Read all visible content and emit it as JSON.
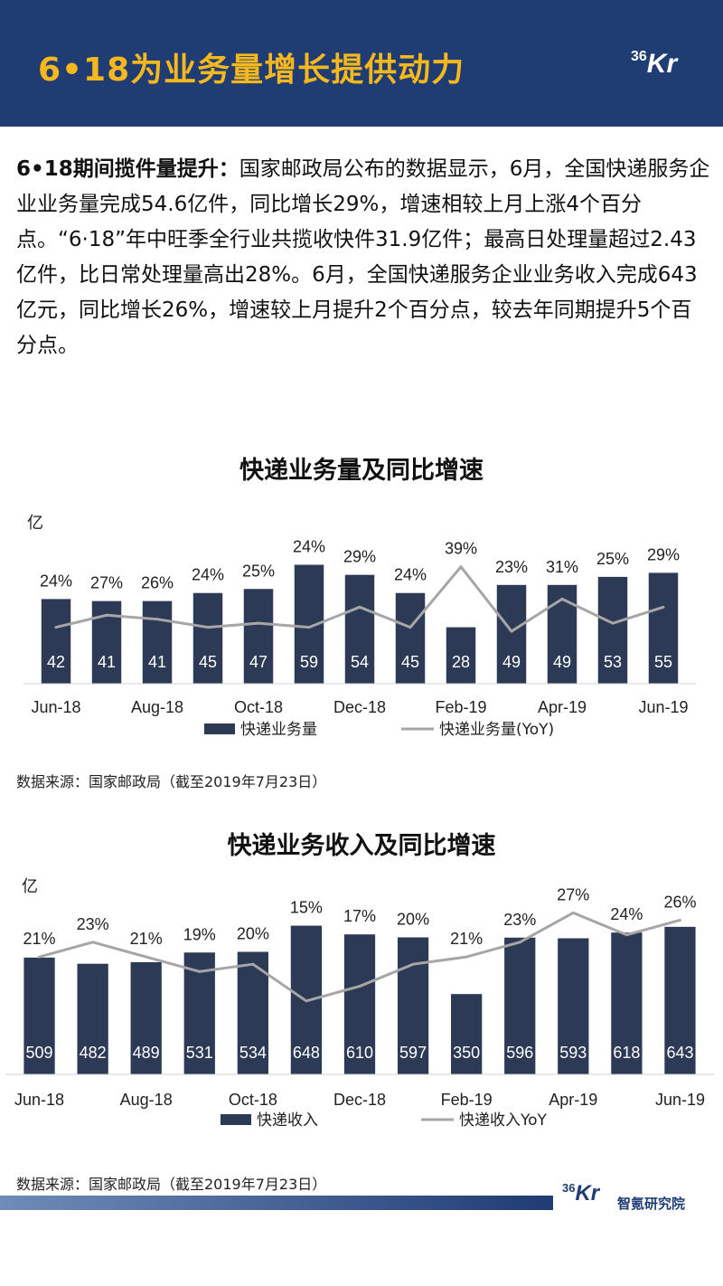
{
  "header": {
    "title": "6•18为业务量增长提供动力",
    "logo_num": "36",
    "logo_kr": "Kr"
  },
  "intro": {
    "lead": "6•18期间揽件量提升：",
    "body": "国家邮政局公布的数据显示，6月，全国快递服务企业业务量完成54.6亿件，同比增长29%，增速相较上月上涨4个百分点。“6·18”年中旺季全行业共揽收快件31.9亿件；最高日处理量超过2.43亿件，比日常处理量高出28%。6月，全国快递服务企业业务收入完成643亿元，同比增长26%，增速较上月提升2个百分点，较去年同期提升5个百分点。"
  },
  "colors": {
    "bar": "#2c3a55",
    "line": "#a6a6a6",
    "header": "#1f3c73",
    "accent": "#f7b81d"
  },
  "chart_data": [
    {
      "type": "bar",
      "title": "快递业务量及同比增速",
      "unit": "亿",
      "categories": [
        "Jun-18",
        "Jul-18",
        "Aug-18",
        "Sep-18",
        "Oct-18",
        "Nov-18",
        "Dec-18",
        "Jan-19",
        "Feb-19",
        "Mar-19",
        "Apr-19",
        "May-19",
        "Jun-19"
      ],
      "tick_labels": [
        "Jun-18",
        "",
        "Aug-18",
        "",
        "Oct-18",
        "",
        "Dec-18",
        "",
        "Feb-19",
        "",
        "Apr-19",
        "",
        "Jun-19"
      ],
      "series": [
        {
          "name": "快递业务量",
          "type": "bar",
          "values": [
            42,
            41,
            41,
            45,
            47,
            59,
            54,
            45,
            28,
            49,
            49,
            53,
            55
          ]
        },
        {
          "name": "快递业务量(YoY)",
          "type": "line",
          "values": [
            24,
            27,
            26,
            24,
            25,
            24,
            29,
            24,
            39,
            23,
            31,
            25,
            29
          ]
        }
      ],
      "line_labels": [
        "24%",
        "27%",
        "26%",
        "24%",
        "25%",
        "24%",
        "29%",
        "24%",
        "39%",
        "23%",
        "31%",
        "25%",
        "29%"
      ],
      "ylim": [
        0,
        70
      ],
      "line_ylim": [
        10,
        45
      ],
      "legend": "bottom",
      "source": "数据来源：国家邮政局（截至2019年7月23日）"
    },
    {
      "type": "bar",
      "title": "快递业务收入及同比增速",
      "unit": "亿",
      "categories": [
        "Jun-18",
        "Jul-18",
        "Aug-18",
        "Sep-18",
        "Oct-18",
        "Nov-18",
        "Dec-18",
        "Jan-19",
        "Feb-19",
        "Mar-19",
        "Apr-19",
        "May-19",
        "Jun-19"
      ],
      "tick_labels": [
        "Jun-18",
        "",
        "Aug-18",
        "",
        "Oct-18",
        "",
        "Dec-18",
        "",
        "Feb-19",
        "",
        "Apr-19",
        "",
        "Jun-19"
      ],
      "series": [
        {
          "name": "快递收入",
          "type": "bar",
          "values": [
            509,
            482,
            489,
            531,
            534,
            648,
            610,
            597,
            350,
            596,
            593,
            618,
            643
          ]
        },
        {
          "name": "快递收入YoY",
          "type": "line",
          "values": [
            21,
            23,
            21,
            19,
            20,
            15,
            17,
            20,
            21,
            23,
            27,
            24,
            26
          ]
        }
      ],
      "line_labels": [
        "21%",
        "23%",
        "21%",
        "19%",
        "20%",
        "15%",
        "17%",
        "20%",
        "21%",
        "23%",
        "27%",
        "24%",
        "26%"
      ],
      "ylim": [
        0,
        800
      ],
      "line_ylim": [
        5,
        30
      ],
      "legend": "bottom",
      "source": "数据来源：国家邮政局（截至2019年7月23日）"
    }
  ],
  "footer": {
    "logo_num": "36",
    "logo_kr": "Kr",
    "brand": "智氪研究院"
  }
}
